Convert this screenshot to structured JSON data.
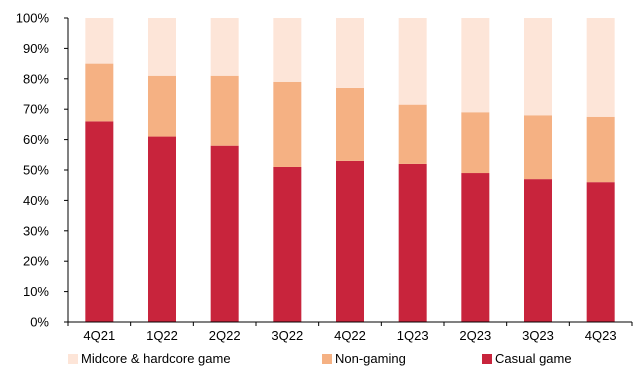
{
  "chart_data": {
    "type": "bar",
    "stacked": true,
    "categories": [
      "4Q21",
      "1Q22",
      "2Q22",
      "3Q22",
      "4Q22",
      "1Q23",
      "2Q23",
      "3Q23",
      "4Q23"
    ],
    "series": [
      {
        "name": "Casual game",
        "color": "#c8243c",
        "values": [
          66,
          61,
          58,
          51,
          53,
          52,
          49,
          47,
          46
        ]
      },
      {
        "name": "Non-gaming",
        "color": "#f5b183",
        "values": [
          19,
          20,
          23,
          28,
          24,
          19.5,
          20,
          21,
          21.5
        ]
      },
      {
        "name": "Midcore & hardcore game",
        "color": "#fde5d8",
        "values": [
          15,
          19,
          19,
          21,
          23,
          28.5,
          31,
          32,
          32.5
        ]
      }
    ],
    "legend_order": [
      "Midcore & hardcore game",
      "Non-gaming",
      "Casual game"
    ],
    "y_ticks": [
      "0%",
      "10%",
      "20%",
      "30%",
      "40%",
      "50%",
      "60%",
      "70%",
      "80%",
      "90%",
      "100%"
    ],
    "ylim": [
      0,
      100
    ],
    "title": "",
    "xlabel": "",
    "ylabel": "",
    "grid": false,
    "legend_position": "bottom"
  }
}
